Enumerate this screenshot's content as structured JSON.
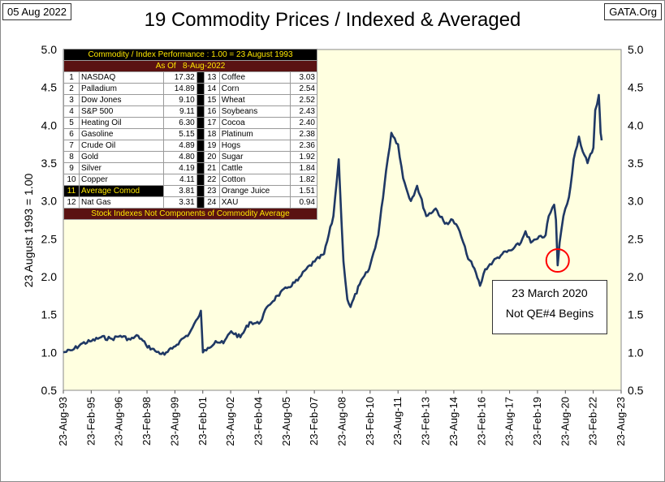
{
  "header": {
    "date_label": "05 Aug 2022",
    "site_label": "GATA.Org"
  },
  "chart_data": {
    "type": "line",
    "title": "19 Commodity Prices / Indexed & Averaged",
    "ylabel": "23 August 1993  = 1.00",
    "ylim": [
      0.5,
      5.0
    ],
    "y_ticks": [
      "0.5",
      "1.0",
      "1.5",
      "2.0",
      "2.5",
      "3.0",
      "3.5",
      "4.0",
      "4.5",
      "5.0"
    ],
    "x_range": [
      "1993-08-23",
      "2023-08-23"
    ],
    "x_ticks": [
      "23-Aug-93",
      "23-Feb-95",
      "23-Aug-96",
      "23-Feb-98",
      "23-Aug-99",
      "23-Feb-01",
      "23-Aug-02",
      "23-Feb-04",
      "23-Aug-05",
      "23-Feb-07",
      "23-Aug-08",
      "23-Feb-10",
      "23-Aug-11",
      "23-Feb-13",
      "23-Aug-14",
      "23-Feb-16",
      "23-Aug-17",
      "23-Feb-19",
      "23-Aug-20",
      "23-Feb-22",
      "23-Aug-23"
    ],
    "grid": false,
    "background": "#ffffe0",
    "line_color": "#1f3864",
    "series": [
      {
        "x": [
          "1993-08-23",
          "1994-02-15",
          "1994-09-01",
          "1995-03-01",
          "1995-09-01",
          "1996-04-01",
          "1996-09-15",
          "1997-04-01",
          "1997-09-01",
          "1998-02-01",
          "1998-08-01",
          "1999-02-01",
          "1999-07-01",
          "1999-12-01",
          "2000-06-01",
          "2000-11-15",
          "2001-01-15",
          "2001-02-23",
          "2001-06-01",
          "2001-11-01",
          "2002-04-01",
          "2002-09-01",
          "2003-03-01",
          "2003-09-01",
          "2004-03-01",
          "2004-09-01",
          "2005-03-01",
          "2005-09-01",
          "2006-04-01",
          "2006-09-15",
          "2007-03-01",
          "2007-09-01",
          "2008-03-01",
          "2008-06-15",
          "2008-07-01",
          "2008-09-15",
          "2008-12-01",
          "2009-02-01",
          "2009-08-01",
          "2010-02-01",
          "2010-08-01",
          "2011-01-01",
          "2011-04-15",
          "2011-08-23",
          "2011-12-01",
          "2012-05-01",
          "2012-09-01",
          "2013-03-01",
          "2013-09-01",
          "2014-03-01",
          "2014-08-01",
          "2014-12-15",
          "2015-05-01",
          "2015-11-01",
          "2016-01-20",
          "2016-05-01",
          "2016-10-01",
          "2017-04-01",
          "2017-10-01",
          "2018-04-01",
          "2018-07-01",
          "2018-10-15",
          "2019-02-23",
          "2019-08-01",
          "2019-10-01",
          "2020-01-15",
          "2020-02-20",
          "2020-03-23",
          "2020-05-01",
          "2020-07-15",
          "2020-11-01",
          "2021-02-01",
          "2021-05-15",
          "2021-08-01",
          "2021-11-01",
          "2022-02-23",
          "2022-04-01",
          "2022-06-10",
          "2022-07-15",
          "2022-08-05"
        ],
        "values": [
          1.0,
          1.03,
          1.12,
          1.15,
          1.2,
          1.18,
          1.22,
          1.17,
          1.22,
          1.1,
          1.02,
          0.97,
          1.05,
          1.15,
          1.25,
          1.45,
          1.55,
          1.0,
          1.06,
          1.15,
          1.12,
          1.28,
          1.2,
          1.4,
          1.38,
          1.62,
          1.75,
          1.85,
          1.95,
          2.1,
          2.2,
          2.3,
          2.8,
          3.55,
          3.3,
          2.2,
          1.7,
          1.6,
          1.9,
          2.1,
          2.55,
          3.4,
          3.9,
          3.75,
          3.3,
          3.0,
          3.2,
          2.8,
          2.9,
          2.7,
          2.75,
          2.6,
          2.3,
          2.05,
          1.88,
          2.1,
          2.2,
          2.3,
          2.35,
          2.45,
          2.6,
          2.45,
          2.5,
          2.55,
          2.8,
          2.95,
          2.75,
          2.15,
          2.45,
          2.8,
          3.05,
          3.55,
          3.85,
          3.65,
          3.5,
          3.7,
          4.2,
          4.4,
          3.9,
          3.8
        ]
      }
    ],
    "annotation": {
      "date": "2020-03-23",
      "value": 2.15,
      "line1": "23 March 2020",
      "line2": "Not QE#4 Begins",
      "circle_color": "#ff0000"
    },
    "table": {
      "header": "Commodity / Index Performance : 1.00 = 23 August 1993",
      "subheader_left": "As Of",
      "subheader_right": "8-Aug-2022",
      "footer": "Stock Indexes Not Components of Commodity Average",
      "rows": [
        {
          "n1": "1",
          "name1": "NASDAQ",
          "v1": "17.32",
          "n2": "13",
          "name2": "Coffee",
          "v2": "3.03"
        },
        {
          "n1": "2",
          "name1": "Palladium",
          "v1": "14.89",
          "n2": "14",
          "name2": "Corn",
          "v2": "2.54"
        },
        {
          "n1": "3",
          "name1": "Dow Jones",
          "v1": "9.10",
          "n2": "15",
          "name2": "Wheat",
          "v2": "2.52"
        },
        {
          "n1": "4",
          "name1": "S&P 500",
          "v1": "9.11",
          "n2": "16",
          "name2": "Soybeans",
          "v2": "2.43"
        },
        {
          "n1": "5",
          "name1": "Heating Oil",
          "v1": "6.30",
          "n2": "17",
          "name2": "Cocoa",
          "v2": "2.40"
        },
        {
          "n1": "6",
          "name1": "Gasoline",
          "v1": "5.15",
          "n2": "18",
          "name2": "Platinum",
          "v2": "2.38"
        },
        {
          "n1": "7",
          "name1": "Crude Oil",
          "v1": "4.89",
          "n2": "19",
          "name2": "Hogs",
          "v2": "2.36"
        },
        {
          "n1": "8",
          "name1": "Gold",
          "v1": "4.80",
          "n2": "20",
          "name2": "Sugar",
          "v2": "1.92"
        },
        {
          "n1": "9",
          "name1": "Silver",
          "v1": "4.19",
          "n2": "21",
          "name2": "Cattle",
          "v2": "1.84"
        },
        {
          "n1": "10",
          "name1": "Copper",
          "v1": "4.11",
          "n2": "22",
          "name2": "Cotton",
          "v2": "1.82"
        },
        {
          "n1": "11",
          "name1": "Average Comod",
          "v1": "3.81",
          "n2": "23",
          "name2": "Orange Juice",
          "v2": "1.51",
          "highlight": true
        },
        {
          "n1": "12",
          "name1": "Nat Gas",
          "v1": "3.31",
          "n2": "24",
          "name2": "XAU",
          "v2": "0.94"
        }
      ]
    }
  }
}
